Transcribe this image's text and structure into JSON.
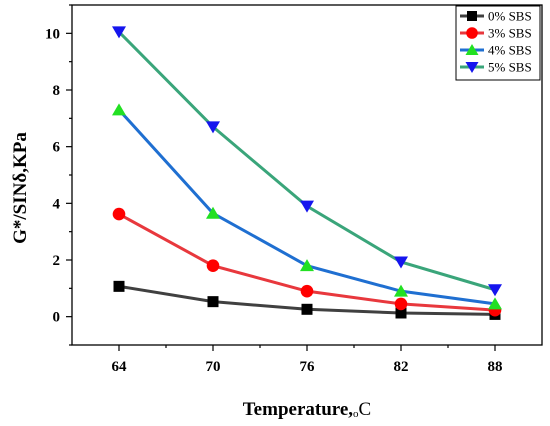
{
  "chart_data": {
    "type": "line",
    "categories": [
      "64",
      "70",
      "76",
      "82",
      "88"
    ],
    "x": [
      64,
      70,
      76,
      82,
      88
    ],
    "xlabel": "Temperature,",
    "xlabel_unit_small": "o",
    "xlabel_unit": "C",
    "ylabel": "G*/SINδ,KPa",
    "ylim": [
      -1,
      11
    ],
    "yticks": [
      0,
      2,
      4,
      6,
      8,
      10
    ],
    "xlim": [
      61,
      91
    ],
    "grid": false,
    "legend_position": "top-right",
    "series": [
      {
        "name": "0% SBS",
        "values": [
          1.07,
          0.53,
          0.26,
          0.13,
          0.08
        ],
        "line_color": "#404040",
        "marker_color": "#000000",
        "marker": "square"
      },
      {
        "name": "3% SBS",
        "values": [
          3.62,
          1.8,
          0.9,
          0.45,
          0.23
        ],
        "line_color": "#e8383d",
        "marker_color": "#ff0000",
        "marker": "circle"
      },
      {
        "name": "4% SBS",
        "values": [
          7.3,
          3.65,
          1.8,
          0.9,
          0.45
        ],
        "line_color": "#1f6fd1",
        "marker_color": "#22e022",
        "marker": "triangle-up"
      },
      {
        "name": "5% SBS",
        "values": [
          10.05,
          6.7,
          3.9,
          1.93,
          0.95
        ],
        "line_color": "#3aa57a",
        "marker_color": "#1515ee",
        "marker": "triangle-down"
      }
    ]
  }
}
